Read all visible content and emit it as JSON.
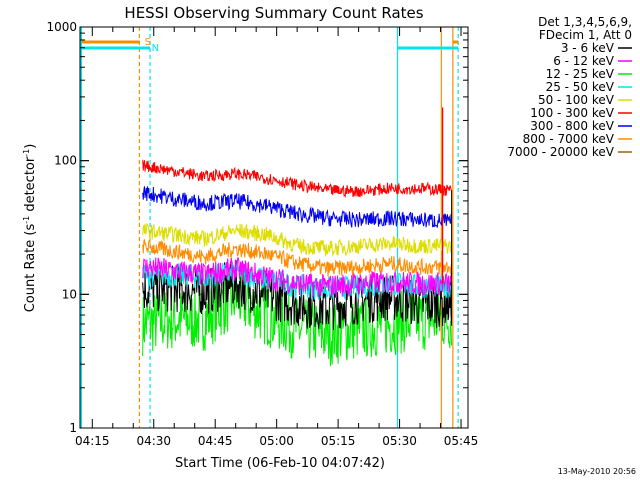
{
  "chart_data": {
    "type": "line",
    "title": "HESSI Observing Summary Count Rates",
    "xlabel": "Start Time (06-Feb-10 04:07:42)",
    "ylabel_main": "Count Rate (s",
    "ylabel_sup1": "-1",
    "ylabel_mid": " detector",
    "ylabel_sup2": "-1",
    "ylabel_end": ")",
    "yscale": "log",
    "ylim": [
      1,
      1000
    ],
    "xlim_minutes": [
      4.3,
      99.0
    ],
    "x_tick_labels": [
      "04:15",
      "04:30",
      "04:45",
      "05:00",
      "05:15",
      "05:30",
      "05:45"
    ],
    "x_tick_minutes": [
      7.3,
      22.3,
      37.3,
      52.3,
      67.3,
      82.3,
      97.3
    ],
    "y_tick_labels": [
      "1",
      "10",
      "100",
      "1000"
    ],
    "y_tick_values": [
      1,
      10,
      100,
      1000
    ],
    "legend_header": [
      "Det 1,3,4,5,6,9,",
      "FDecim 1, Att 0"
    ],
    "legend_position": "right",
    "date_stamp": "13-May-2010 20:56",
    "data_start_minute": 19.6,
    "data_end_minute": 95.0,
    "series": [
      {
        "name": "3 - 6 keV",
        "color": "#000000",
        "base": [
          11,
          11,
          10.5,
          12,
          10,
          8.5,
          8,
          9,
          9.5,
          8.5,
          8.5
        ],
        "noise": 0.06
      },
      {
        "name": "6 - 12 keV",
        "color": "#ff00ff",
        "base": [
          16,
          15,
          14,
          15.5,
          13.5,
          12,
          11.5,
          12,
          12.5,
          12,
          12
        ],
        "noise": 0.03
      },
      {
        "name": "12 - 25 keV",
        "color": "#00ee00",
        "base": [
          6,
          6.5,
          6.5,
          9.5,
          7,
          5.5,
          5,
          5.5,
          6,
          6.5,
          6.5
        ],
        "noise": 0.08
      },
      {
        "name": "25 - 50 keV",
        "color": "#00e5ee",
        "base": [
          14,
          14,
          13.5,
          14.5,
          13,
          11.5,
          11,
          11.5,
          12,
          11.5,
          11.5
        ],
        "noise": 0.03
      },
      {
        "name": "50 - 100 keV",
        "color": "#dddd00",
        "base": [
          30,
          28,
          26,
          30,
          28,
          23,
          22,
          23,
          24,
          23,
          23
        ],
        "noise": 0.02
      },
      {
        "name": "100 - 300 keV",
        "color": "#ff0000",
        "base": [
          92,
          84,
          76,
          80,
          74,
          66,
          60,
          59,
          62,
          62,
          60
        ],
        "noise": 0.015
      },
      {
        "name": "300 - 800 keV",
        "color": "#0000ee",
        "base": [
          58,
          52,
          48,
          50,
          46,
          40,
          37,
          36,
          37,
          36,
          35
        ],
        "noise": 0.02
      },
      {
        "name": "800 - 7000 keV",
        "color": "#ff8c00",
        "base": [
          23,
          21,
          19,
          22,
          20,
          17,
          15.5,
          16,
          17,
          16,
          16
        ],
        "noise": 0.02
      },
      {
        "name": "7000 - 20000 keV",
        "color": "#a65e00",
        "base": [],
        "noise": 0
      }
    ],
    "annotations": [
      {
        "text": "S",
        "color": "#ff8c00",
        "minute": 19.6
      },
      {
        "text": "N",
        "color": "#00e5ee",
        "minute": 21.3
      }
    ],
    "spike": {
      "minute": 92.8,
      "value": 250,
      "color": "#ff0000"
    }
  }
}
